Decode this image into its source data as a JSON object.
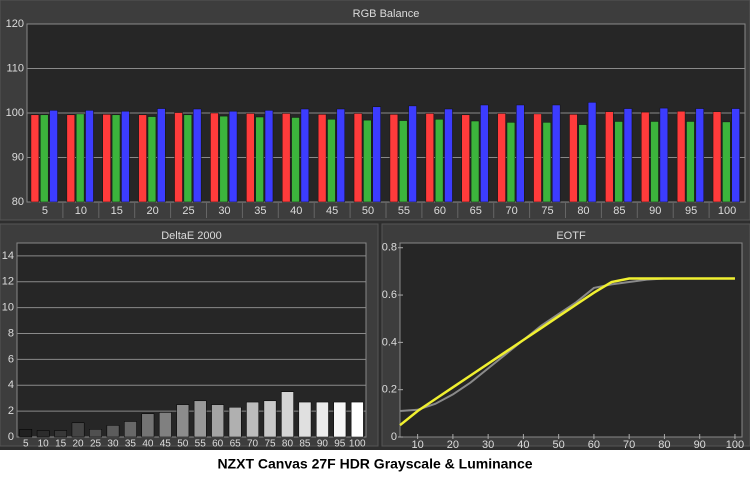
{
  "caption": "NZXT Canvas 27F HDR Grayscale & Luminance",
  "chart_data": [
    {
      "type": "bar",
      "title": "RGB Balance",
      "categories": [
        "5",
        "10",
        "15",
        "20",
        "25",
        "30",
        "35",
        "40",
        "45",
        "50",
        "55",
        "60",
        "65",
        "70",
        "75",
        "80",
        "85",
        "90",
        "95",
        "100"
      ],
      "series": [
        {
          "color": "#ff3b3b",
          "values": [
            99.6,
            99.6,
            99.7,
            99.6,
            100.1,
            100.0,
            99.9,
            99.9,
            99.7,
            99.9,
            99.7,
            99.9,
            99.6,
            99.9,
            99.8,
            99.7,
            100.3,
            100.2,
            100.4,
            100.3
          ]
        },
        {
          "color": "#3cb43c",
          "values": [
            99.6,
            99.8,
            99.6,
            99.2,
            99.6,
            99.3,
            99.1,
            99.0,
            98.6,
            98.4,
            98.3,
            98.6,
            98.2,
            97.9,
            97.9,
            97.4,
            98.1,
            98.1,
            98.1,
            98.0
          ]
        },
        {
          "color": "#3c3cff",
          "values": [
            100.6,
            100.6,
            100.4,
            101.0,
            100.9,
            100.4,
            100.6,
            100.9,
            100.9,
            101.4,
            101.6,
            100.9,
            101.8,
            101.8,
            101.8,
            102.4,
            101.0,
            101.1,
            101.0,
            101.0
          ]
        }
      ],
      "ylim": [
        80,
        120
      ],
      "yticks": [
        80,
        90,
        100,
        110,
        120
      ],
      "grid": true
    },
    {
      "type": "bar",
      "title": "DeltaE 2000",
      "categories": [
        "5",
        "10",
        "15",
        "20",
        "25",
        "30",
        "35",
        "40",
        "45",
        "50",
        "55",
        "60",
        "65",
        "70",
        "75",
        "80",
        "85",
        "90",
        "95",
        "100"
      ],
      "values": [
        0.6,
        0.5,
        0.5,
        1.1,
        0.6,
        0.9,
        1.2,
        1.8,
        1.9,
        2.5,
        2.8,
        2.5,
        2.3,
        2.7,
        2.8,
        3.5,
        2.7,
        2.7,
        2.7,
        2.7
      ],
      "colors": [
        "#202020",
        "#2c2c2c",
        "#383838",
        "#444444",
        "#505050",
        "#5c5c5c",
        "#686868",
        "#747474",
        "#808080",
        "#8c8c8c",
        "#989898",
        "#a4a4a4",
        "#b0b0b0",
        "#bcbcbc",
        "#c8c8c8",
        "#d4d4d4",
        "#e0e0e0",
        "#ececec",
        "#f6f6f6",
        "#ffffff"
      ],
      "ylim": [
        0,
        15
      ],
      "yticks": [
        0,
        2,
        4,
        6,
        8,
        10,
        12,
        14
      ],
      "grid": true
    },
    {
      "type": "line",
      "title": "EOTF",
      "x": [
        5,
        10,
        15,
        20,
        25,
        30,
        35,
        40,
        45,
        50,
        55,
        60,
        65,
        70,
        75,
        80,
        85,
        90,
        95,
        100
      ],
      "series": [
        {
          "color": "#8a8a8a",
          "values": [
            0.11,
            0.115,
            0.14,
            0.18,
            0.23,
            0.29,
            0.35,
            0.41,
            0.47,
            0.52,
            0.57,
            0.63,
            0.645,
            0.655,
            0.665,
            0.67,
            0.67,
            0.67,
            0.67,
            0.67
          ]
        },
        {
          "color": "#f0f030",
          "values": [
            0.05,
            0.11,
            0.16,
            0.21,
            0.26,
            0.31,
            0.36,
            0.41,
            0.46,
            0.51,
            0.56,
            0.61,
            0.655,
            0.67,
            0.67,
            0.67,
            0.67,
            0.67,
            0.67,
            0.67
          ]
        }
      ],
      "xlim": [
        5,
        102
      ],
      "xticks": [
        10,
        20,
        30,
        40,
        50,
        60,
        70,
        80,
        90,
        100
      ],
      "ylim": [
        0,
        0.82
      ],
      "yticks": [
        0,
        0.2,
        0.4,
        0.6,
        0.8
      ],
      "grid": false
    }
  ]
}
